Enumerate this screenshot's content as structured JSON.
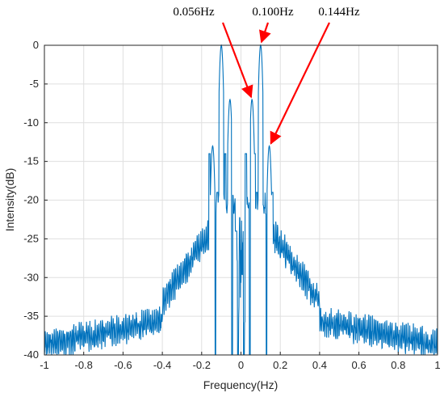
{
  "chart_data": {
    "type": "line",
    "title": "",
    "xlabel": "Frequency(Hz)",
    "ylabel": "Intensity(dB)",
    "xlim": [
      -1,
      1
    ],
    "ylim": [
      -40,
      0
    ],
    "grid": true,
    "xticks": [
      -1,
      -0.8,
      -0.6,
      -0.4,
      -0.2,
      0,
      0.2,
      0.4,
      0.6,
      0.8,
      1
    ],
    "yticks": [
      0,
      -5,
      -10,
      -15,
      -20,
      -25,
      -30,
      -35,
      -40
    ],
    "xtick_labels": [
      "-1",
      "-0.8",
      "-0.6",
      "-0.4",
      "-0.2",
      "0",
      "0.2",
      "0.4",
      "0.6",
      "0.8",
      "1"
    ],
    "ytick_labels": [
      "0",
      "-5",
      "-10",
      "-15",
      "-20",
      "-25",
      "-30",
      "-35",
      "-40"
    ],
    "series_color": "#0072BD",
    "annotation_color": "#FF0000",
    "peaks": [
      {
        "x": -0.1,
        "y": 0
      },
      {
        "x": -0.056,
        "y": -7
      },
      {
        "x": -0.044,
        "y": -20
      },
      {
        "x": 0.044,
        "y": -20
      },
      {
        "x": 0.056,
        "y": -7
      },
      {
        "x": 0.1,
        "y": 0
      },
      {
        "x": -0.144,
        "y": -13
      },
      {
        "x": 0.144,
        "y": -13
      }
    ],
    "annotations": [
      {
        "text": "0.056Hz",
        "x": 0.056,
        "y": -7
      },
      {
        "text": "0.100Hz",
        "x": 0.1,
        "y": 0
      },
      {
        "text": "0.144Hz",
        "x": 0.144,
        "y": -13
      }
    ]
  }
}
